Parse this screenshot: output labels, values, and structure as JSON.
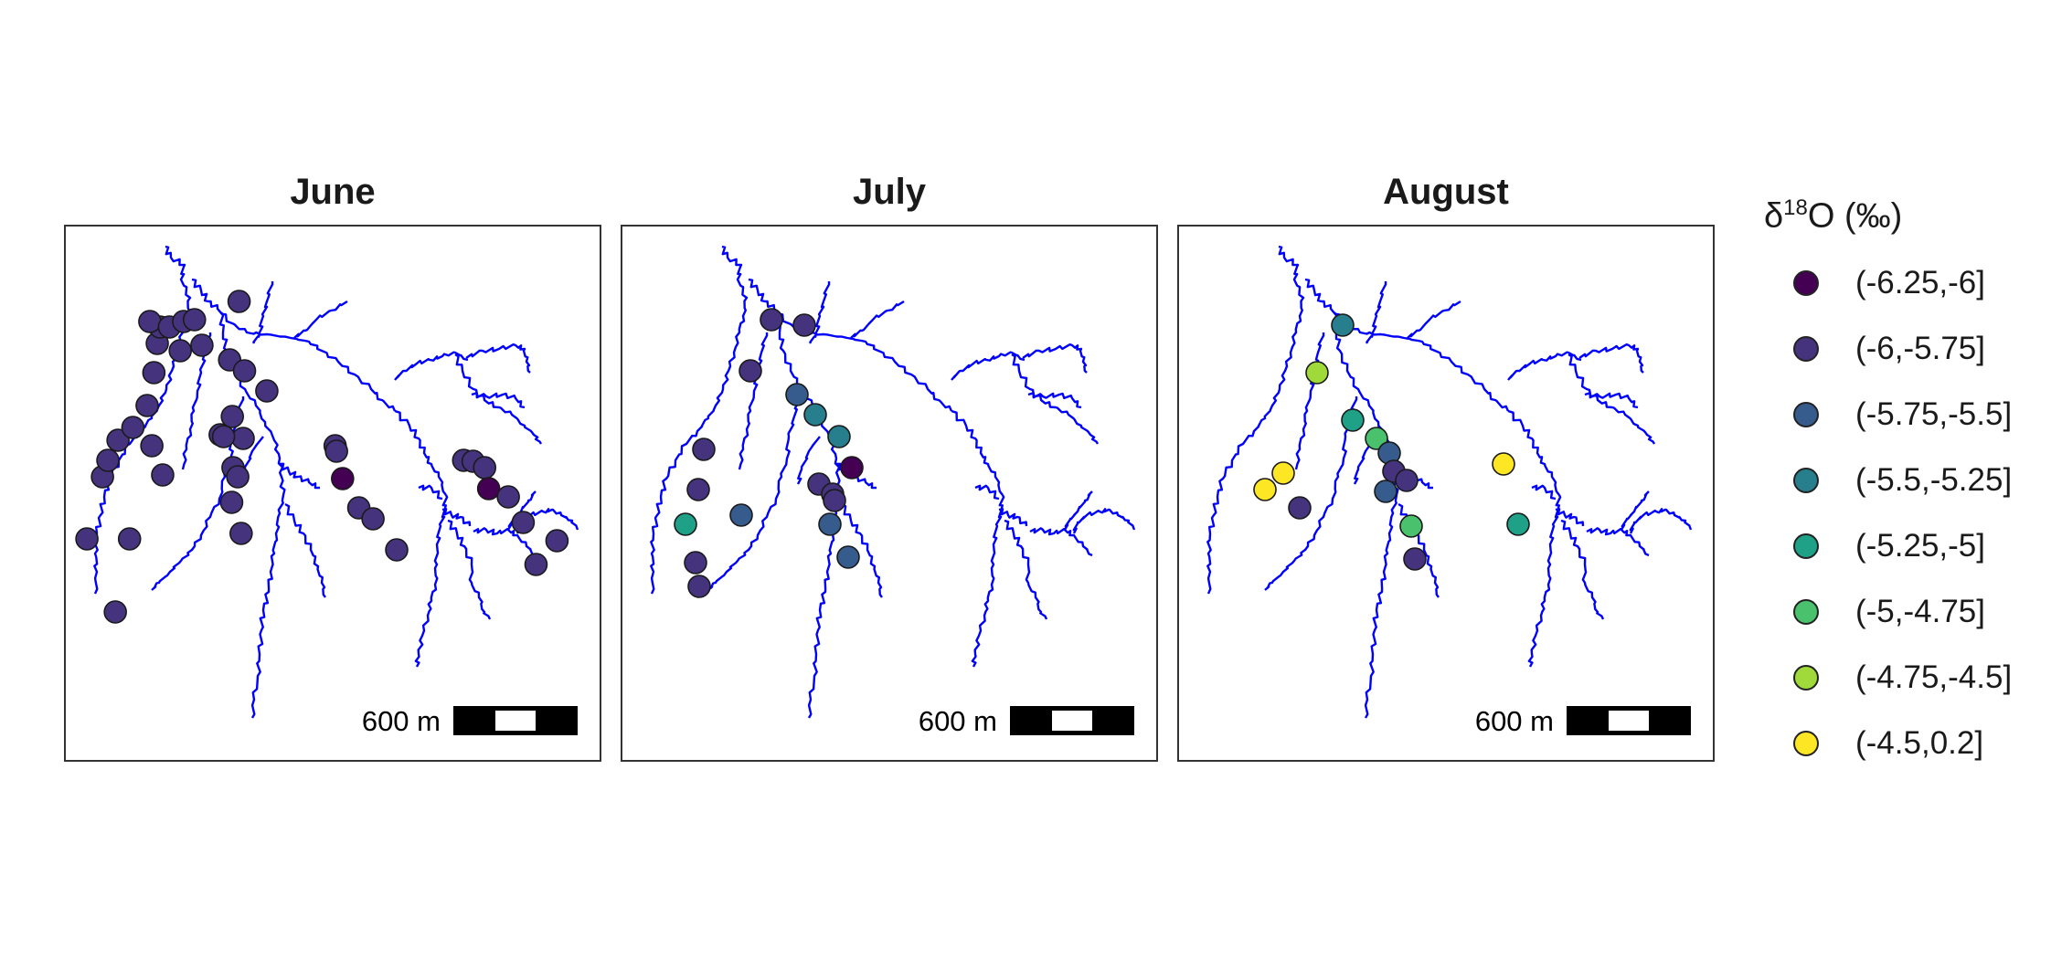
{
  "scale_bar_label": "600 m",
  "legend": {
    "title_delta": "δ",
    "title_sup": "18",
    "title_rest": "O (‰)",
    "items": [
      {
        "label": "(-6.25,-6]",
        "color": "#440154"
      },
      {
        "label": "(-6,-5.75]",
        "color": "#46337E"
      },
      {
        "label": "(-5.75,-5.5]",
        "color": "#365C8D"
      },
      {
        "label": "(-5.5,-5.25]",
        "color": "#277F8E"
      },
      {
        "label": "(-5.25,-5]",
        "color": "#1FA187"
      },
      {
        "label": "(-5,-4.75]",
        "color": "#4AC16D"
      },
      {
        "label": "(-4.75,-4.5]",
        "color": "#9FDA3A"
      },
      {
        "label": "(-4.5,0.2]",
        "color": "#FDE725"
      }
    ]
  },
  "river_color": "#0000FF",
  "panels": [
    {
      "title": "June",
      "sample_classes": [
        1,
        1,
        1,
        1,
        1,
        1,
        1,
        1,
        1,
        1,
        1,
        1,
        1,
        1,
        1,
        1,
        1,
        1,
        1,
        1,
        1,
        1,
        1,
        1,
        1,
        1,
        1,
        1,
        1,
        1,
        1,
        1,
        1,
        0,
        1,
        1,
        1,
        1,
        1,
        1,
        0,
        1,
        1,
        1,
        1
      ]
    },
    {
      "title": "July",
      "sample_classes": [
        1,
        1,
        1,
        2,
        3,
        3,
        0,
        1,
        1,
        1,
        2,
        2,
        1,
        1,
        4,
        1,
        1,
        2
      ]
    },
    {
      "title": "August",
      "sample_classes": [
        3,
        6,
        4,
        5,
        2,
        1,
        2,
        1,
        5,
        1,
        7,
        7,
        1,
        7,
        4
      ]
    }
  ]
}
